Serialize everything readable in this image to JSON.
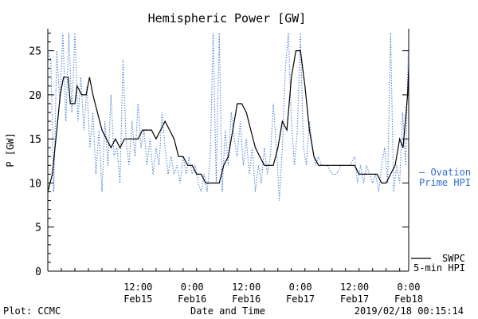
{
  "chart_data": {
    "type": "line",
    "title": "Hemispheric Power [GW]",
    "ylabel": "P [GW]",
    "xlabel": "Date and Time",
    "ylim": [
      0,
      27.5
    ],
    "yticks": [
      0,
      5,
      10,
      15,
      20,
      25
    ],
    "xlim": [
      "2019-02-14T16:00",
      "2019-02-18T00:00"
    ],
    "xticks": [
      {
        "time": "2019-02-15T12:00",
        "line1": "12:00",
        "line2": "Feb15"
      },
      {
        "time": "2019-02-16T00:00",
        "line1": "0:00",
        "line2": "Feb16"
      },
      {
        "time": "2019-02-16T12:00",
        "line1": "12:00",
        "line2": "Feb16"
      },
      {
        "time": "2019-02-17T00:00",
        "line1": "0:00",
        "line2": "Feb17"
      },
      {
        "time": "2019-02-17T12:00",
        "line1": "12:00",
        "line2": "Feb17"
      },
      {
        "time": "2019-02-18T00:00",
        "line1": "0:00",
        "line2": "Feb18"
      }
    ],
    "series": [
      {
        "name": "SWPC 5-min HPI",
        "legend_lines": [
          "SWPC",
          "5-min HPI"
        ],
        "color": "#000000",
        "style": "solid",
        "points": [
          [
            "2019-02-14T16:00",
            9
          ],
          [
            "2019-02-14T17:00",
            11
          ],
          [
            "2019-02-14T18:00",
            16
          ],
          [
            "2019-02-14T18:45",
            20
          ],
          [
            "2019-02-14T19:30",
            22
          ],
          [
            "2019-02-14T20:30",
            22
          ],
          [
            "2019-02-14T21:00",
            19
          ],
          [
            "2019-02-14T22:00",
            19
          ],
          [
            "2019-02-14T22:30",
            21
          ],
          [
            "2019-02-14T23:30",
            20
          ],
          [
            "2019-02-15T00:30",
            20
          ],
          [
            "2019-02-15T01:15",
            22
          ],
          [
            "2019-02-15T02:00",
            20
          ],
          [
            "2019-02-15T03:00",
            18
          ],
          [
            "2019-02-15T04:00",
            16
          ],
          [
            "2019-02-15T05:00",
            15
          ],
          [
            "2019-02-15T06:00",
            14
          ],
          [
            "2019-02-15T07:00",
            15
          ],
          [
            "2019-02-15T08:00",
            14
          ],
          [
            "2019-02-15T09:00",
            15
          ],
          [
            "2019-02-15T12:00",
            15
          ],
          [
            "2019-02-15T13:00",
            16
          ],
          [
            "2019-02-15T15:00",
            16
          ],
          [
            "2019-02-15T16:00",
            15
          ],
          [
            "2019-02-15T17:00",
            16
          ],
          [
            "2019-02-15T18:00",
            17
          ],
          [
            "2019-02-15T19:00",
            16
          ],
          [
            "2019-02-15T20:00",
            15
          ],
          [
            "2019-02-15T21:00",
            13
          ],
          [
            "2019-02-15T22:00",
            13
          ],
          [
            "2019-02-15T23:00",
            12
          ],
          [
            "2019-02-16T00:00",
            12
          ],
          [
            "2019-02-16T01:00",
            11
          ],
          [
            "2019-02-16T02:00",
            11
          ],
          [
            "2019-02-16T03:00",
            10
          ],
          [
            "2019-02-16T06:00",
            10
          ],
          [
            "2019-02-16T07:00",
            12
          ],
          [
            "2019-02-16T08:00",
            13
          ],
          [
            "2019-02-16T09:00",
            16
          ],
          [
            "2019-02-16T10:00",
            19
          ],
          [
            "2019-02-16T11:00",
            19
          ],
          [
            "2019-02-16T12:00",
            18
          ],
          [
            "2019-02-16T13:00",
            16
          ],
          [
            "2019-02-16T14:00",
            14
          ],
          [
            "2019-02-16T15:00",
            13
          ],
          [
            "2019-02-16T16:00",
            12
          ],
          [
            "2019-02-16T17:00",
            12
          ],
          [
            "2019-02-16T18:00",
            12
          ],
          [
            "2019-02-16T19:00",
            14
          ],
          [
            "2019-02-16T20:00",
            17
          ],
          [
            "2019-02-16T21:00",
            16
          ],
          [
            "2019-02-16T22:00",
            22
          ],
          [
            "2019-02-16T23:00",
            25
          ],
          [
            "2019-02-17T00:00",
            25
          ],
          [
            "2019-02-17T01:00",
            21
          ],
          [
            "2019-02-17T02:00",
            16
          ],
          [
            "2019-02-17T03:00",
            13
          ],
          [
            "2019-02-17T04:00",
            12
          ],
          [
            "2019-02-17T12:00",
            12
          ],
          [
            "2019-02-17T13:00",
            11
          ],
          [
            "2019-02-17T17:00",
            11
          ],
          [
            "2019-02-17T18:00",
            10
          ],
          [
            "2019-02-17T19:00",
            10
          ],
          [
            "2019-02-17T20:00",
            11
          ],
          [
            "2019-02-17T21:00",
            12
          ],
          [
            "2019-02-17T22:00",
            15
          ],
          [
            "2019-02-17T22:45",
            14
          ],
          [
            "2019-02-17T23:15",
            17
          ],
          [
            "2019-02-17T23:45",
            20
          ],
          [
            "2019-02-18T00:00",
            23
          ]
        ]
      },
      {
        "name": "Ovation Prime HPI",
        "legend_lines": [
          "— Ovation",
          "Prime HPI"
        ],
        "color": "#2f6fd0",
        "style": "dotted",
        "points": [
          [
            "2019-02-14T16:00",
            25
          ],
          [
            "2019-02-14T16:40",
            24
          ],
          [
            "2019-02-14T17:20",
            9
          ],
          [
            "2019-02-14T18:00",
            25
          ],
          [
            "2019-02-14T18:40",
            19
          ],
          [
            "2019-02-14T19:20",
            27
          ],
          [
            "2019-02-14T20:00",
            17
          ],
          [
            "2019-02-14T20:40",
            27
          ],
          [
            "2019-02-14T21:20",
            18
          ],
          [
            "2019-02-14T22:00",
            27
          ],
          [
            "2019-02-14T22:40",
            17
          ],
          [
            "2019-02-14T23:20",
            22
          ],
          [
            "2019-02-15T00:00",
            16
          ],
          [
            "2019-02-15T00:40",
            21
          ],
          [
            "2019-02-15T01:20",
            14
          ],
          [
            "2019-02-15T02:00",
            18
          ],
          [
            "2019-02-15T02:40",
            11
          ],
          [
            "2019-02-15T03:20",
            16
          ],
          [
            "2019-02-15T04:00",
            9
          ],
          [
            "2019-02-15T04:40",
            17
          ],
          [
            "2019-02-15T05:20",
            12
          ],
          [
            "2019-02-15T06:00",
            20
          ],
          [
            "2019-02-15T06:40",
            13
          ],
          [
            "2019-02-15T07:20",
            14
          ],
          [
            "2019-02-15T08:00",
            10
          ],
          [
            "2019-02-15T08:40",
            24
          ],
          [
            "2019-02-15T09:20",
            15
          ],
          [
            "2019-02-15T10:00",
            12
          ],
          [
            "2019-02-15T10:40",
            17
          ],
          [
            "2019-02-15T11:20",
            13
          ],
          [
            "2019-02-15T12:00",
            19
          ],
          [
            "2019-02-15T12:40",
            14
          ],
          [
            "2019-02-15T13:20",
            16
          ],
          [
            "2019-02-15T14:00",
            12
          ],
          [
            "2019-02-15T14:40",
            15
          ],
          [
            "2019-02-15T15:20",
            11
          ],
          [
            "2019-02-15T16:00",
            14
          ],
          [
            "2019-02-15T16:40",
            12
          ],
          [
            "2019-02-15T17:20",
            18
          ],
          [
            "2019-02-15T18:00",
            14
          ],
          [
            "2019-02-15T18:40",
            11
          ],
          [
            "2019-02-15T19:20",
            13
          ],
          [
            "2019-02-15T20:00",
            11
          ],
          [
            "2019-02-15T20:40",
            12
          ],
          [
            "2019-02-15T21:20",
            10
          ],
          [
            "2019-02-15T22:00",
            13
          ],
          [
            "2019-02-15T22:40",
            11
          ],
          [
            "2019-02-15T23:20",
            13
          ],
          [
            "2019-02-16T00:00",
            11
          ],
          [
            "2019-02-16T00:40",
            12
          ],
          [
            "2019-02-16T01:20",
            10
          ],
          [
            "2019-02-16T02:00",
            9
          ],
          [
            "2019-02-16T02:40",
            11
          ],
          [
            "2019-02-16T03:20",
            9
          ],
          [
            "2019-02-16T04:00",
            13
          ],
          [
            "2019-02-16T04:40",
            27
          ],
          [
            "2019-02-16T05:20",
            10
          ],
          [
            "2019-02-16T06:00",
            27
          ],
          [
            "2019-02-16T06:40",
            9
          ],
          [
            "2019-02-16T07:20",
            16
          ],
          [
            "2019-02-16T08:00",
            12
          ],
          [
            "2019-02-16T08:40",
            18
          ],
          [
            "2019-02-16T09:20",
            15
          ],
          [
            "2019-02-16T10:00",
            13
          ],
          [
            "2019-02-16T10:40",
            17
          ],
          [
            "2019-02-16T11:20",
            12
          ],
          [
            "2019-02-16T12:00",
            15
          ],
          [
            "2019-02-16T12:40",
            11
          ],
          [
            "2019-02-16T13:20",
            14
          ],
          [
            "2019-02-16T14:00",
            9
          ],
          [
            "2019-02-16T14:40",
            12
          ],
          [
            "2019-02-16T15:20",
            10
          ],
          [
            "2019-02-16T16:00",
            14
          ],
          [
            "2019-02-16T16:40",
            11
          ],
          [
            "2019-02-16T17:20",
            13
          ],
          [
            "2019-02-16T18:00",
            19
          ],
          [
            "2019-02-16T18:40",
            14
          ],
          [
            "2019-02-16T19:20",
            8
          ],
          [
            "2019-02-16T20:00",
            14
          ],
          [
            "2019-02-16T20:40",
            23
          ],
          [
            "2019-02-16T21:20",
            27
          ],
          [
            "2019-02-16T22:00",
            17
          ],
          [
            "2019-02-16T22:40",
            12
          ],
          [
            "2019-02-16T23:20",
            16
          ],
          [
            "2019-02-17T00:00",
            27
          ],
          [
            "2019-02-17T00:40",
            14
          ],
          [
            "2019-02-17T01:20",
            12
          ],
          [
            "2019-02-17T02:00",
            17
          ],
          [
            "2019-02-17T02:40",
            14
          ],
          [
            "2019-02-17T03:20",
            12
          ],
          [
            "2019-02-17T04:00",
            13
          ],
          [
            "2019-02-17T04:40",
            12
          ],
          [
            "2019-02-17T05:20",
            12
          ],
          [
            "2019-02-17T06:00",
            12
          ],
          [
            "2019-02-17T07:00",
            11
          ],
          [
            "2019-02-17T08:00",
            11
          ],
          [
            "2019-02-17T09:00",
            12
          ],
          [
            "2019-02-17T10:00",
            12
          ],
          [
            "2019-02-17T11:00",
            12
          ],
          [
            "2019-02-17T12:00",
            13
          ],
          [
            "2019-02-17T12:40",
            10
          ],
          [
            "2019-02-17T13:20",
            12
          ],
          [
            "2019-02-17T14:00",
            10
          ],
          [
            "2019-02-17T14:40",
            12
          ],
          [
            "2019-02-17T15:20",
            11
          ],
          [
            "2019-02-17T16:00",
            10
          ],
          [
            "2019-02-17T16:40",
            11
          ],
          [
            "2019-02-17T17:20",
            9
          ],
          [
            "2019-02-17T18:00",
            12
          ],
          [
            "2019-02-17T18:40",
            14
          ],
          [
            "2019-02-17T19:20",
            10
          ],
          [
            "2019-02-17T20:00",
            27
          ],
          [
            "2019-02-17T20:40",
            9
          ],
          [
            "2019-02-17T21:20",
            12
          ],
          [
            "2019-02-17T22:00",
            10
          ],
          [
            "2019-02-17T22:40",
            18
          ],
          [
            "2019-02-17T23:20",
            12
          ],
          [
            "2019-02-17T23:40",
            20
          ],
          [
            "2019-02-18T00:00",
            27
          ]
        ]
      }
    ],
    "legend_position": "right",
    "grid": false
  },
  "footer": {
    "plot_credit": "Plot: CCMC",
    "timestamp": "2019/02/18 00:15:14"
  }
}
